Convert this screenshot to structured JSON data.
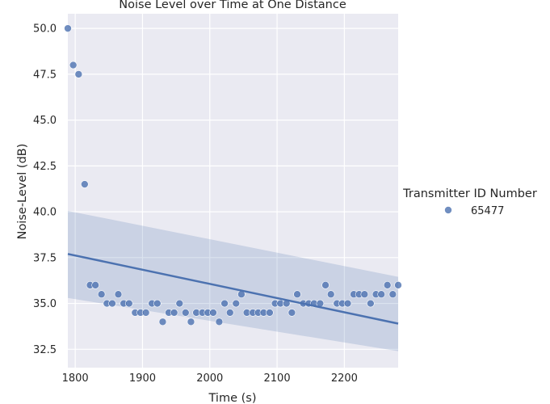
{
  "chart_data": {
    "type": "scatter",
    "title": "Noise Level over Time at One Distance",
    "xlabel": "Time (s)",
    "ylabel": "Noise-Level (dB)",
    "xlim": [
      1789,
      2280
    ],
    "ylim": [
      31.5,
      50.8
    ],
    "xticks": [
      1800,
      1900,
      2000,
      2100,
      2200
    ],
    "yticks": [
      32.5,
      35.0,
      37.5,
      40.0,
      42.5,
      45.0,
      47.5,
      50.0
    ],
    "grid": true,
    "legend": {
      "title": "Transmitter ID Number",
      "placement": "right",
      "entries": [
        "65477"
      ]
    },
    "series": [
      {
        "name": "65477",
        "color": "#4c72b0",
        "x": [
          1789,
          1797,
          1805,
          1814,
          1822,
          1830,
          1839,
          1847,
          1855,
          1864,
          1872,
          1880,
          1889,
          1897,
          1905,
          1914,
          1922,
          1930,
          1939,
          1947,
          1955,
          1964,
          1972,
          1980,
          1989,
          1997,
          2005,
          2014,
          2022,
          2030,
          2039,
          2047,
          2055,
          2064,
          2072,
          2080,
          2089,
          2097,
          2105,
          2114,
          2122,
          2130,
          2139,
          2147,
          2155,
          2164,
          2172,
          2180,
          2189,
          2197,
          2205,
          2214,
          2222,
          2230,
          2239,
          2247,
          2255,
          2264,
          2272,
          2280
        ],
        "y": [
          50.0,
          48.0,
          47.5,
          41.5,
          36.0,
          36.0,
          35.5,
          35.0,
          35.0,
          35.5,
          35.0,
          35.0,
          34.5,
          34.5,
          34.5,
          35.0,
          35.0,
          34.0,
          34.5,
          34.5,
          35.0,
          34.5,
          34.0,
          34.5,
          34.5,
          34.5,
          34.5,
          34.0,
          35.0,
          34.5,
          35.0,
          35.5,
          34.5,
          34.5,
          34.5,
          34.5,
          34.5,
          35.0,
          35.0,
          35.0,
          34.5,
          35.5,
          35.0,
          35.0,
          35.0,
          35.0,
          36.0,
          35.5,
          35.0,
          35.0,
          35.0,
          35.5,
          35.5,
          35.5,
          35.0,
          35.5,
          35.5,
          36.0,
          35.5,
          36.0
        ]
      }
    ],
    "regression": {
      "x": [
        1789,
        2280
      ],
      "y": [
        37.7,
        33.9
      ],
      "ci_upper": [
        40.05,
        36.45
      ],
      "ci_lower": [
        35.3,
        32.4
      ]
    }
  }
}
